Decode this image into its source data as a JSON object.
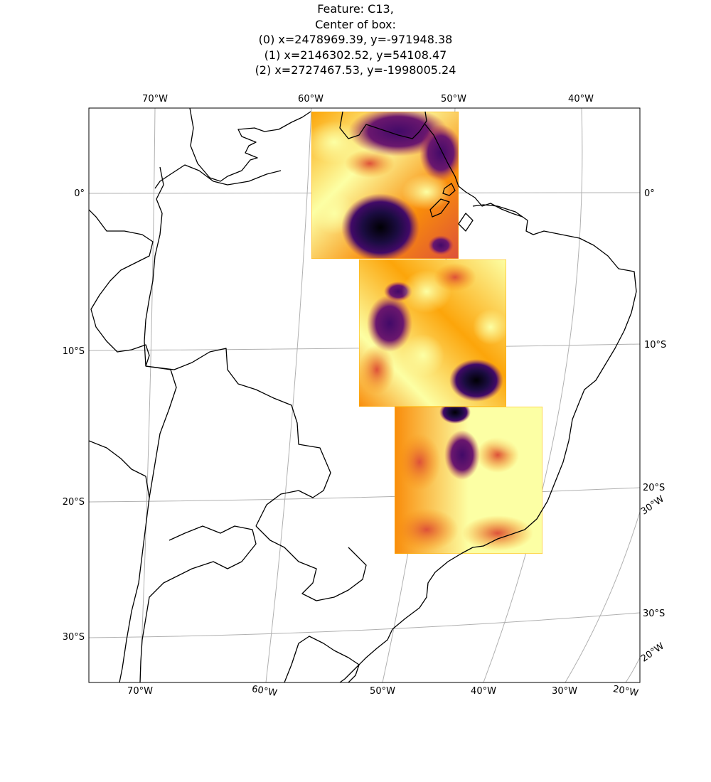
{
  "title": {
    "line1": "Feature: C13,",
    "line2": "Center of box:",
    "line3": "(0) x=2478969.39, y=-971948.38",
    "line4": "(1) x=2146302.52, y=54108.47",
    "line5": "(2) x=2727467.53, y=-1998005.24"
  },
  "labels": {
    "top": [
      "70°W",
      "60°W",
      "50°W",
      "40°W"
    ],
    "bottom": [
      "70°W",
      "60°W",
      "50°W",
      "40°W",
      "30°W",
      "20°W"
    ],
    "left": [
      "0°",
      "10°S",
      "20°S",
      "30°S"
    ],
    "right": [
      "0°",
      "10°S",
      "20°S",
      "30°W",
      "30°S",
      "20°W"
    ]
  },
  "colors": {
    "coastline": "#000000",
    "gridline": "#b0b0b0",
    "box_edge": "#ffb000",
    "colormap": "inferno",
    "colormap_stops": [
      "#000004",
      "#420a68",
      "#932667",
      "#dd513a",
      "#fca50a",
      "#fcffa4"
    ]
  }
}
